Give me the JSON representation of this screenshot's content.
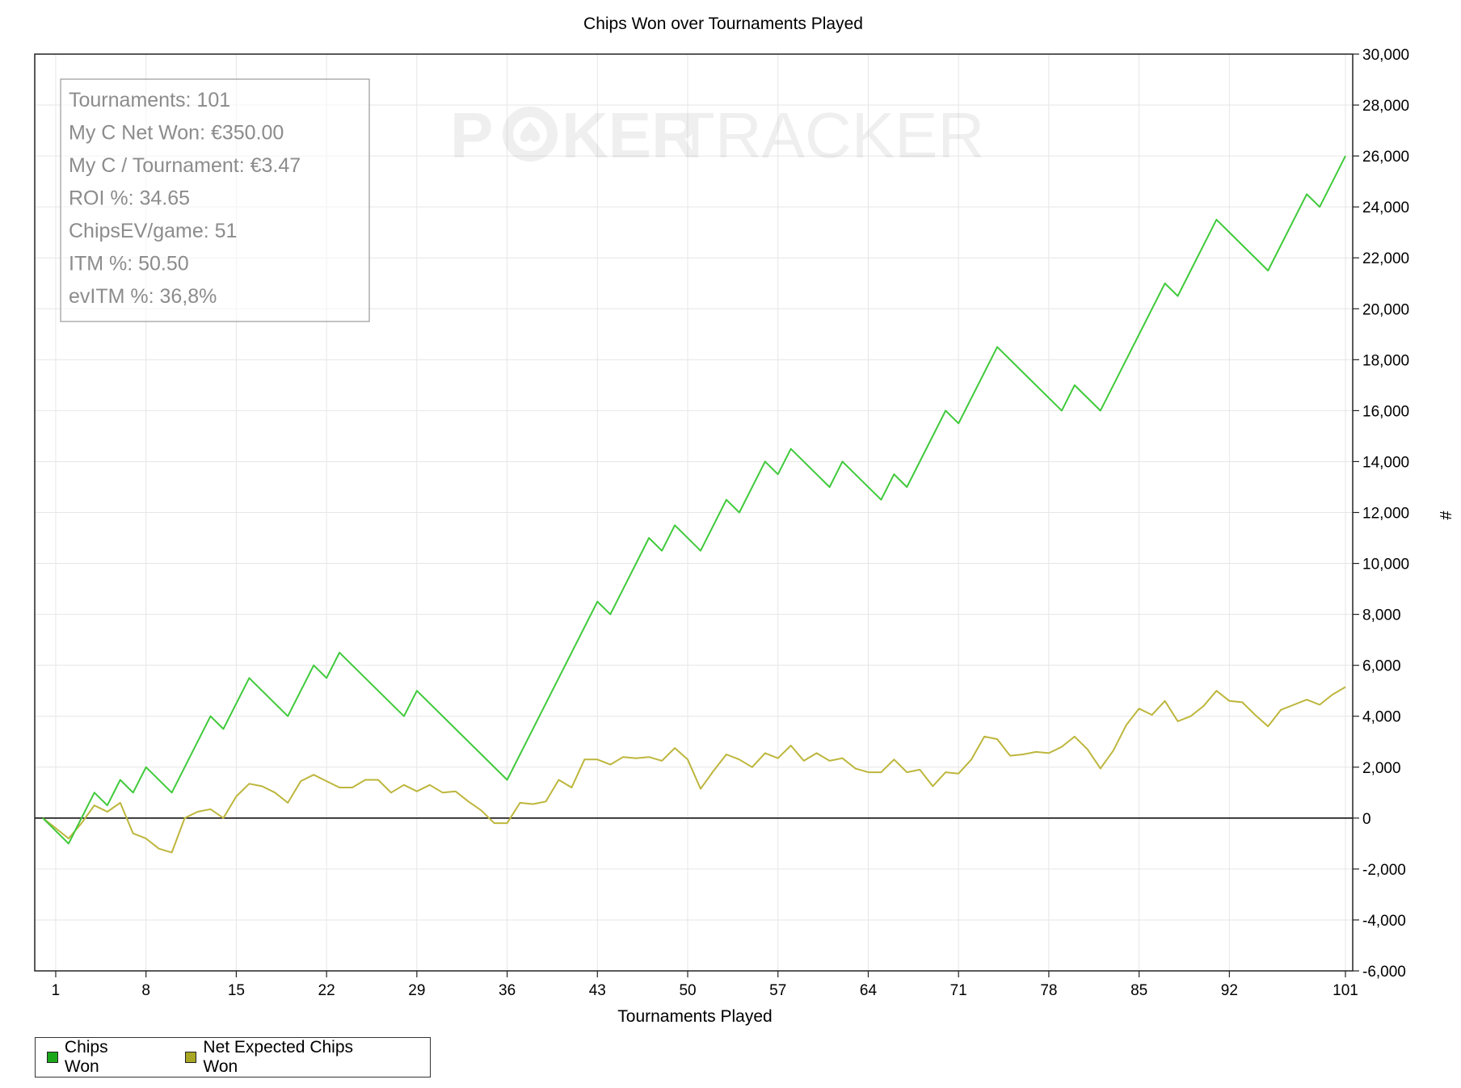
{
  "chart_data": {
    "type": "line",
    "title": "Chips Won over Tournaments Played",
    "xlabel": "Tournaments Played",
    "ylabel": "#",
    "y_axis_side": "right",
    "xlim": [
      0,
      101
    ],
    "ylim": [
      -6000,
      30000
    ],
    "x_ticks": [
      1,
      8,
      15,
      22,
      29,
      36,
      43,
      50,
      57,
      64,
      71,
      78,
      85,
      92,
      101
    ],
    "y_ticks": [
      -6000,
      -4000,
      -2000,
      0,
      2000,
      4000,
      6000,
      8000,
      10000,
      12000,
      14000,
      16000,
      18000,
      20000,
      22000,
      24000,
      26000,
      28000,
      30000
    ],
    "y_tick_labels": [
      "-6,000",
      "-4,000",
      "-2,000",
      "0",
      "2,000",
      "4,000",
      "6,000",
      "8,000",
      "10,000",
      "12,000",
      "14,000",
      "16,000",
      "18,000",
      "20,000",
      "22,000",
      "24,000",
      "26,000",
      "28,000",
      "30,000"
    ],
    "grid": true,
    "zero_line": true,
    "legend_position": "bottom-left",
    "series": [
      {
        "name": "Chips Won",
        "color": "#3fca3a",
        "swatch_color": "#1aa81a",
        "points": [
          [
            0,
            0
          ],
          [
            2,
            -1000
          ],
          [
            4,
            1000
          ],
          [
            5,
            500
          ],
          [
            6,
            1500
          ],
          [
            7,
            1000
          ],
          [
            8,
            2000
          ],
          [
            10,
            1000
          ],
          [
            13,
            4000
          ],
          [
            14,
            3500
          ],
          [
            16,
            5500
          ],
          [
            19,
            4000
          ],
          [
            21,
            6000
          ],
          [
            22,
            5500
          ],
          [
            23,
            6500
          ],
          [
            28,
            4000
          ],
          [
            29,
            5000
          ],
          [
            36,
            1500
          ],
          [
            43,
            8500
          ],
          [
            44,
            8000
          ],
          [
            47,
            11000
          ],
          [
            48,
            10500
          ],
          [
            49,
            11500
          ],
          [
            51,
            10500
          ],
          [
            53,
            12500
          ],
          [
            54,
            12000
          ],
          [
            56,
            14000
          ],
          [
            57,
            13500
          ],
          [
            58,
            14500
          ],
          [
            61,
            13000
          ],
          [
            62,
            14000
          ],
          [
            65,
            12500
          ],
          [
            66,
            13500
          ],
          [
            67,
            13000
          ],
          [
            70,
            16000
          ],
          [
            71,
            15500
          ],
          [
            74,
            18500
          ],
          [
            79,
            16000
          ],
          [
            80,
            17000
          ],
          [
            82,
            16000
          ],
          [
            87,
            21000
          ],
          [
            88,
            20500
          ],
          [
            91,
            23500
          ],
          [
            95,
            21500
          ],
          [
            98,
            24500
          ],
          [
            99,
            24000
          ],
          [
            101,
            26000
          ]
        ]
      },
      {
        "name": "Net Expected Chips Won",
        "color": "#bdb63c",
        "swatch_color": "#a8a622",
        "points": [
          [
            0,
            0
          ],
          [
            1,
            -400
          ],
          [
            2,
            -800
          ],
          [
            3,
            -200
          ],
          [
            4,
            500
          ],
          [
            5,
            250
          ],
          [
            6,
            600
          ],
          [
            7,
            -600
          ],
          [
            8,
            -800
          ],
          [
            9,
            -1200
          ],
          [
            10,
            -1350
          ],
          [
            11,
            0
          ],
          [
            12,
            250
          ],
          [
            13,
            350
          ],
          [
            14,
            0
          ],
          [
            15,
            850
          ],
          [
            16,
            1350
          ],
          [
            17,
            1250
          ],
          [
            18,
            1000
          ],
          [
            19,
            600
          ],
          [
            20,
            1450
          ],
          [
            21,
            1700
          ],
          [
            22,
            1450
          ],
          [
            23,
            1200
          ],
          [
            24,
            1200
          ],
          [
            25,
            1500
          ],
          [
            26,
            1500
          ],
          [
            27,
            1000
          ],
          [
            28,
            1300
          ],
          [
            29,
            1050
          ],
          [
            30,
            1300
          ],
          [
            31,
            1000
          ],
          [
            32,
            1050
          ],
          [
            33,
            650
          ],
          [
            34,
            300
          ],
          [
            35,
            -200
          ],
          [
            36,
            -200
          ],
          [
            37,
            600
          ],
          [
            38,
            550
          ],
          [
            39,
            650
          ],
          [
            40,
            1500
          ],
          [
            41,
            1200
          ],
          [
            42,
            2300
          ],
          [
            43,
            2300
          ],
          [
            44,
            2100
          ],
          [
            45,
            2400
          ],
          [
            46,
            2350
          ],
          [
            47,
            2400
          ],
          [
            48,
            2250
          ],
          [
            49,
            2750
          ],
          [
            50,
            2300
          ],
          [
            51,
            1150
          ],
          [
            52,
            1850
          ],
          [
            53,
            2500
          ],
          [
            54,
            2300
          ],
          [
            55,
            2000
          ],
          [
            56,
            2550
          ],
          [
            57,
            2350
          ],
          [
            58,
            2850
          ],
          [
            59,
            2250
          ],
          [
            60,
            2550
          ],
          [
            61,
            2250
          ],
          [
            62,
            2350
          ],
          [
            63,
            1950
          ],
          [
            64,
            1800
          ],
          [
            65,
            1800
          ],
          [
            66,
            2300
          ],
          [
            67,
            1800
          ],
          [
            68,
            1900
          ],
          [
            69,
            1250
          ],
          [
            70,
            1800
          ],
          [
            71,
            1750
          ],
          [
            72,
            2300
          ],
          [
            73,
            3200
          ],
          [
            74,
            3100
          ],
          [
            75,
            2450
          ],
          [
            76,
            2500
          ],
          [
            77,
            2600
          ],
          [
            78,
            2550
          ],
          [
            79,
            2800
          ],
          [
            80,
            3200
          ],
          [
            81,
            2700
          ],
          [
            82,
            1950
          ],
          [
            83,
            2650
          ],
          [
            84,
            3650
          ],
          [
            85,
            4300
          ],
          [
            86,
            4050
          ],
          [
            87,
            4600
          ],
          [
            88,
            3800
          ],
          [
            89,
            4000
          ],
          [
            90,
            4400
          ],
          [
            91,
            5000
          ],
          [
            92,
            4600
          ],
          [
            93,
            4550
          ],
          [
            94,
            4050
          ],
          [
            95,
            3600
          ],
          [
            96,
            4250
          ],
          [
            97,
            4450
          ],
          [
            98,
            4650
          ],
          [
            99,
            4450
          ],
          [
            100,
            4850
          ],
          [
            101,
            5150
          ]
        ]
      }
    ],
    "annotations": {
      "stats_box": [
        "Tournaments: 101",
        "My C Net Won: €350.00",
        "My C / Tournament: €3.47",
        "ROI %: 34.65",
        "ChipsEV/game: 51",
        "ITM %: 50.50",
        "evITM %: 36,8%"
      ],
      "watermark_part1": "P",
      "watermark_part2": "KER",
      "watermark_part3": "TRACKER"
    }
  }
}
